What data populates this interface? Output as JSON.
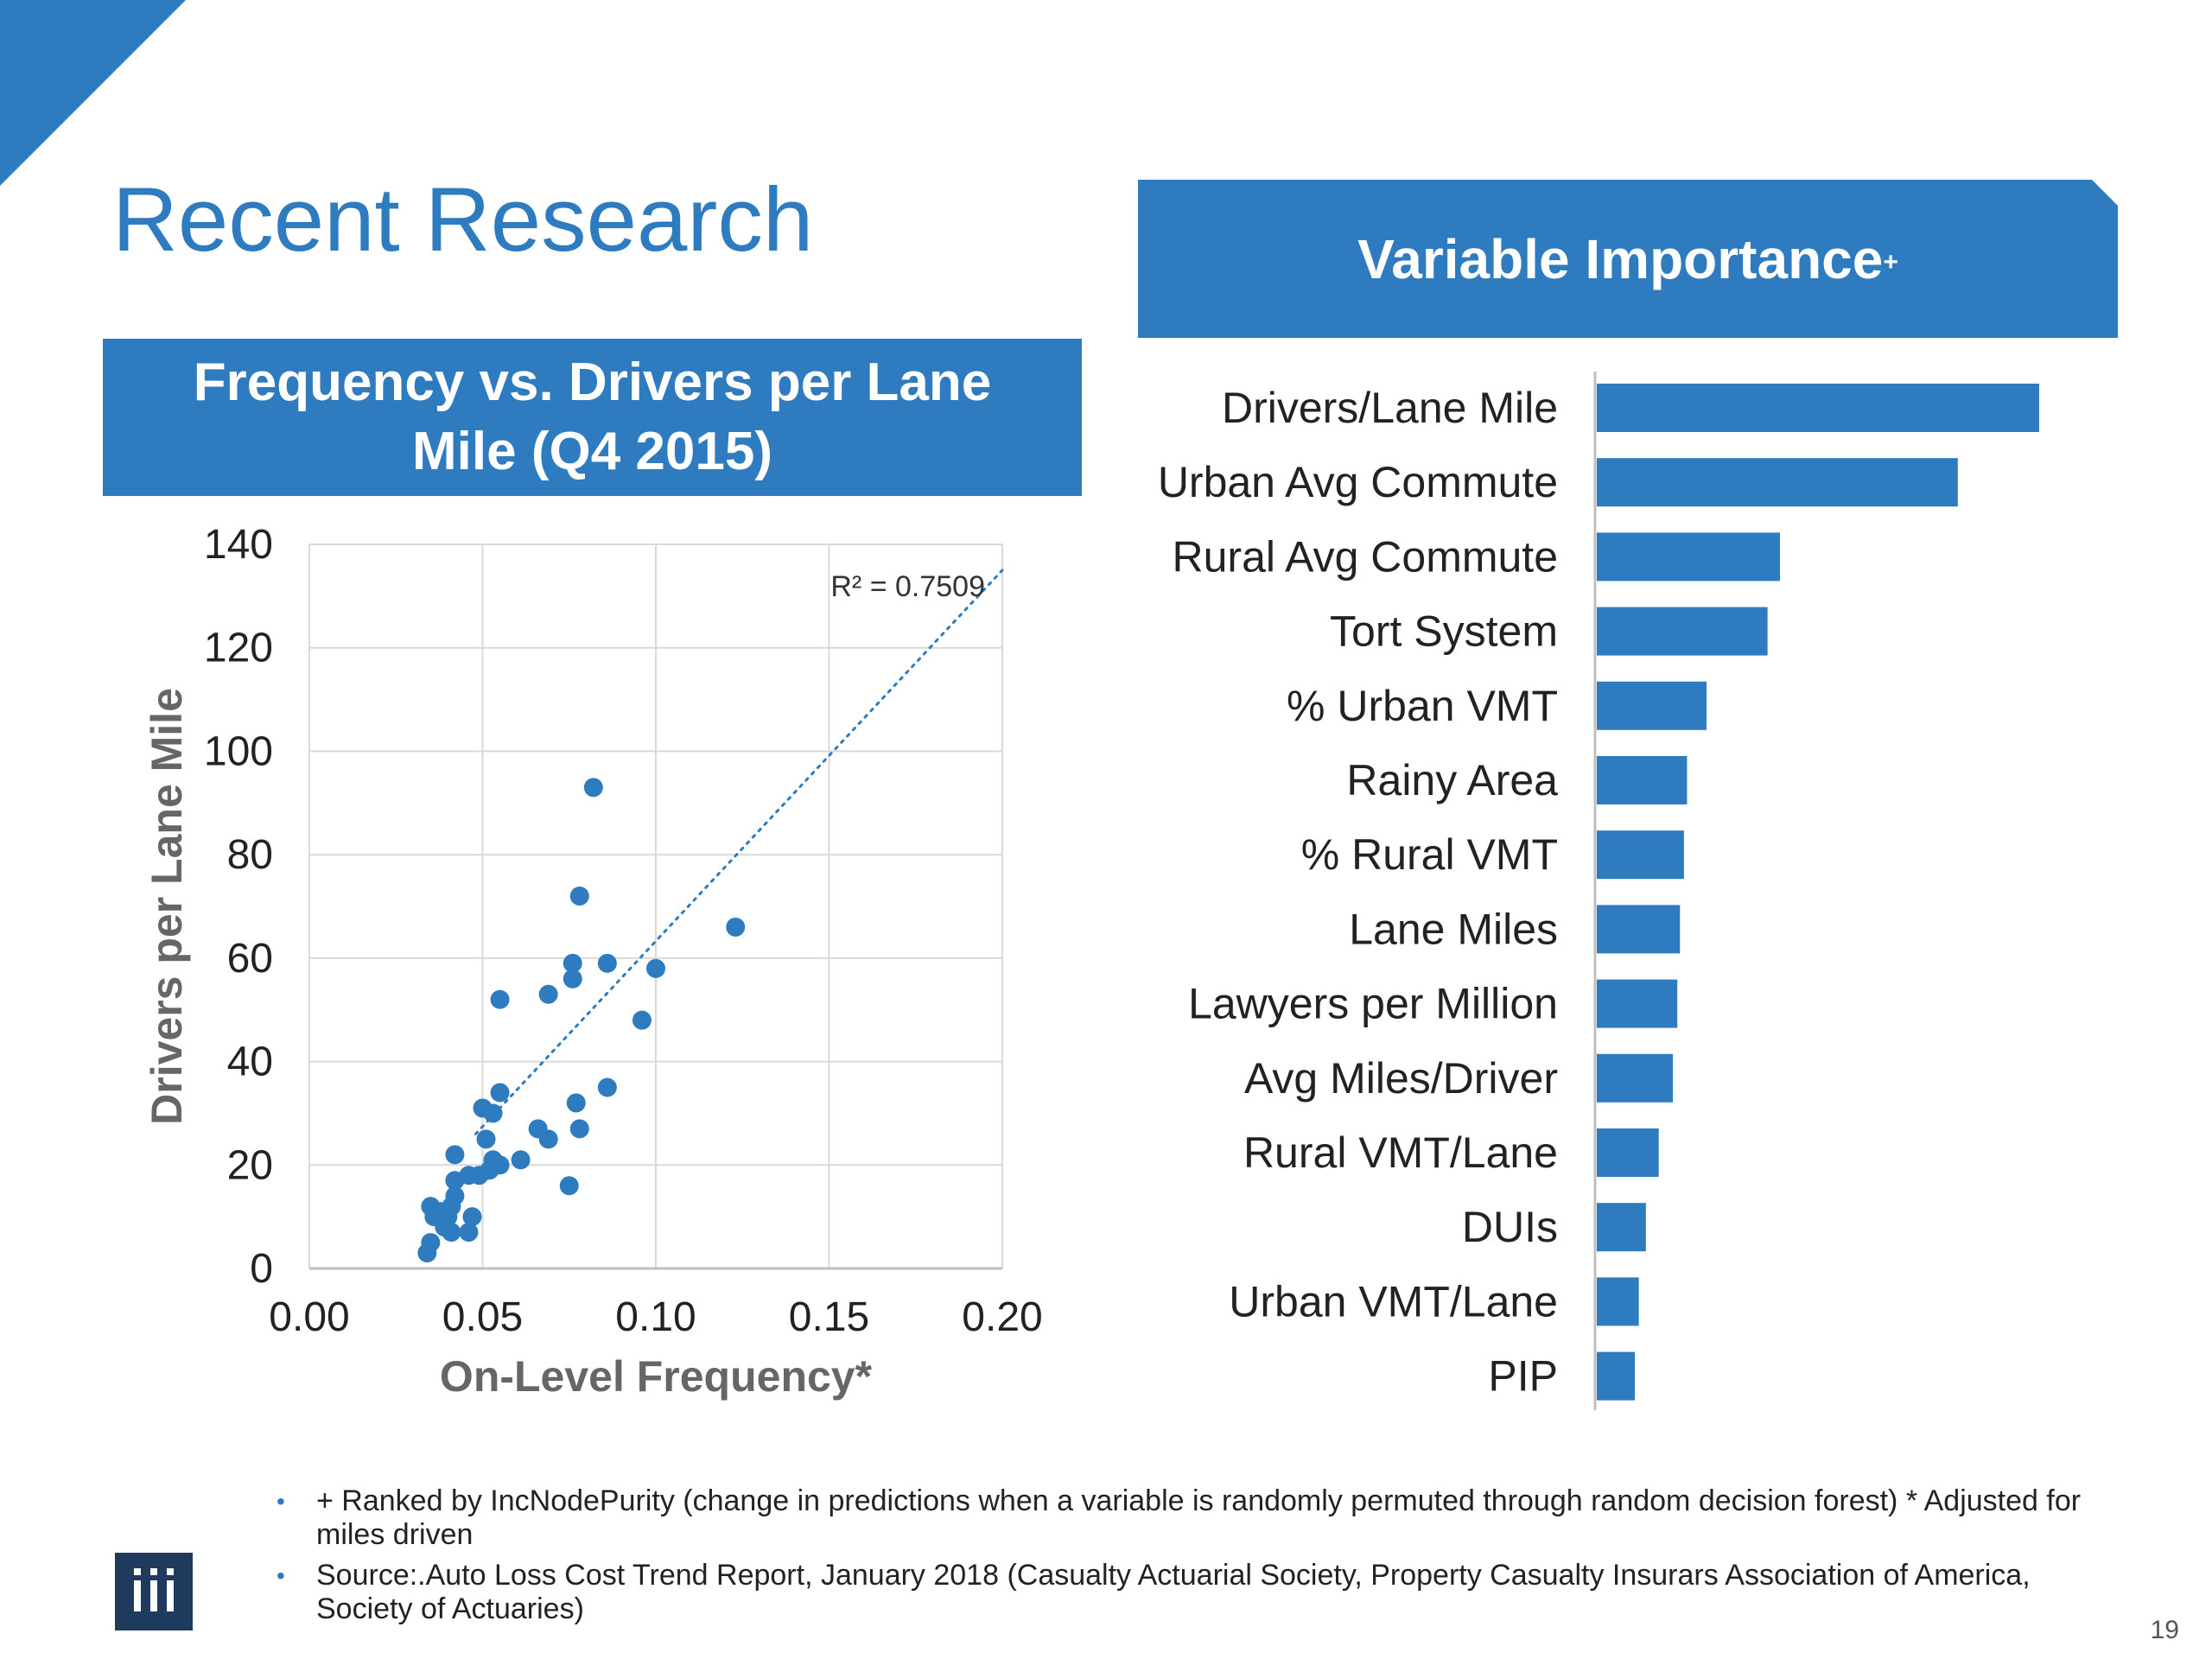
{
  "slide": {
    "title": "Recent Research",
    "page_number": "19",
    "accent_color": "#2E7BBF",
    "left_box_line1": "Frequency vs. Drivers per Lane",
    "left_box_line2": "Mile (Q4 2015)",
    "right_box_title": "Variable Importance",
    "right_box_sup": "+",
    "footnotes": [
      "+ Ranked by IncNodePurity (change in predictions when a variable is randomly permuted through random decision forest) * Adjusted for miles driven",
      "Source:.Auto Loss Cost Trend Report, January 2018 (Casualty Actuarial Society, Property Casualty Insurars Association of America, Society of Actuaries)"
    ],
    "bullet_glyph": "•",
    "logo_text": "iii"
  },
  "chart_data": [
    {
      "type": "scatter",
      "title": "Frequency vs. Drivers per Lane Mile (Q4 2015)",
      "xlabel": "On-Level Frequency*",
      "ylabel": "Drivers per Lane Mile",
      "xlim": [
        0,
        0.2
      ],
      "ylim": [
        0,
        140
      ],
      "x_ticks": [
        "0.00",
        "0.05",
        "0.10",
        "0.15",
        "0.20"
      ],
      "y_ticks": [
        "0",
        "20",
        "40",
        "60",
        "80",
        "100",
        "120",
        "140"
      ],
      "grid": true,
      "trendline": {
        "type": "linear",
        "from": [
          0.048,
          26
        ],
        "to": [
          0.2,
          135
        ],
        "label": "R² = 0.7509"
      },
      "points": [
        [
          0.082,
          93
        ],
        [
          0.078,
          72
        ],
        [
          0.123,
          66
        ],
        [
          0.076,
          59
        ],
        [
          0.086,
          59
        ],
        [
          0.1,
          58
        ],
        [
          0.076,
          56
        ],
        [
          0.055,
          52
        ],
        [
          0.069,
          53
        ],
        [
          0.096,
          48
        ],
        [
          0.086,
          35
        ],
        [
          0.055,
          34
        ],
        [
          0.077,
          32
        ],
        [
          0.05,
          31
        ],
        [
          0.053,
          30
        ],
        [
          0.066,
          27
        ],
        [
          0.078,
          27
        ],
        [
          0.069,
          25
        ],
        [
          0.051,
          25
        ],
        [
          0.061,
          21
        ],
        [
          0.042,
          22
        ],
        [
          0.053,
          21
        ],
        [
          0.055,
          20
        ],
        [
          0.052,
          19
        ],
        [
          0.046,
          18
        ],
        [
          0.049,
          18
        ],
        [
          0.042,
          17
        ],
        [
          0.075,
          16
        ],
        [
          0.042,
          14
        ],
        [
          0.041,
          12
        ],
        [
          0.035,
          12
        ],
        [
          0.038,
          11
        ],
        [
          0.036,
          10
        ],
        [
          0.04,
          10
        ],
        [
          0.047,
          10
        ],
        [
          0.039,
          8
        ],
        [
          0.041,
          7
        ],
        [
          0.046,
          7
        ],
        [
          0.035,
          5
        ],
        [
          0.034,
          3
        ]
      ]
    },
    {
      "type": "bar",
      "orientation": "horizontal",
      "title": "Variable Importance+",
      "categories": [
        "Drivers/Lane Mile",
        "Urban Avg Commute",
        "Rural Avg Commute",
        "Tort System",
        "% Urban VMT",
        "Rainy Area",
        "% Rural VMT",
        "Lane Miles",
        "Lawyers per Million",
        "Avg Miles/Driver",
        "Rural VMT/Lane",
        "DUIs",
        "Urban VMT/Lane",
        "PIP"
      ],
      "values": [
        100,
        81.6,
        41.4,
        38.6,
        24.8,
        20.4,
        19.7,
        18.8,
        18.2,
        17.2,
        14.0,
        11.1,
        9.5,
        8.6
      ]
    }
  ]
}
